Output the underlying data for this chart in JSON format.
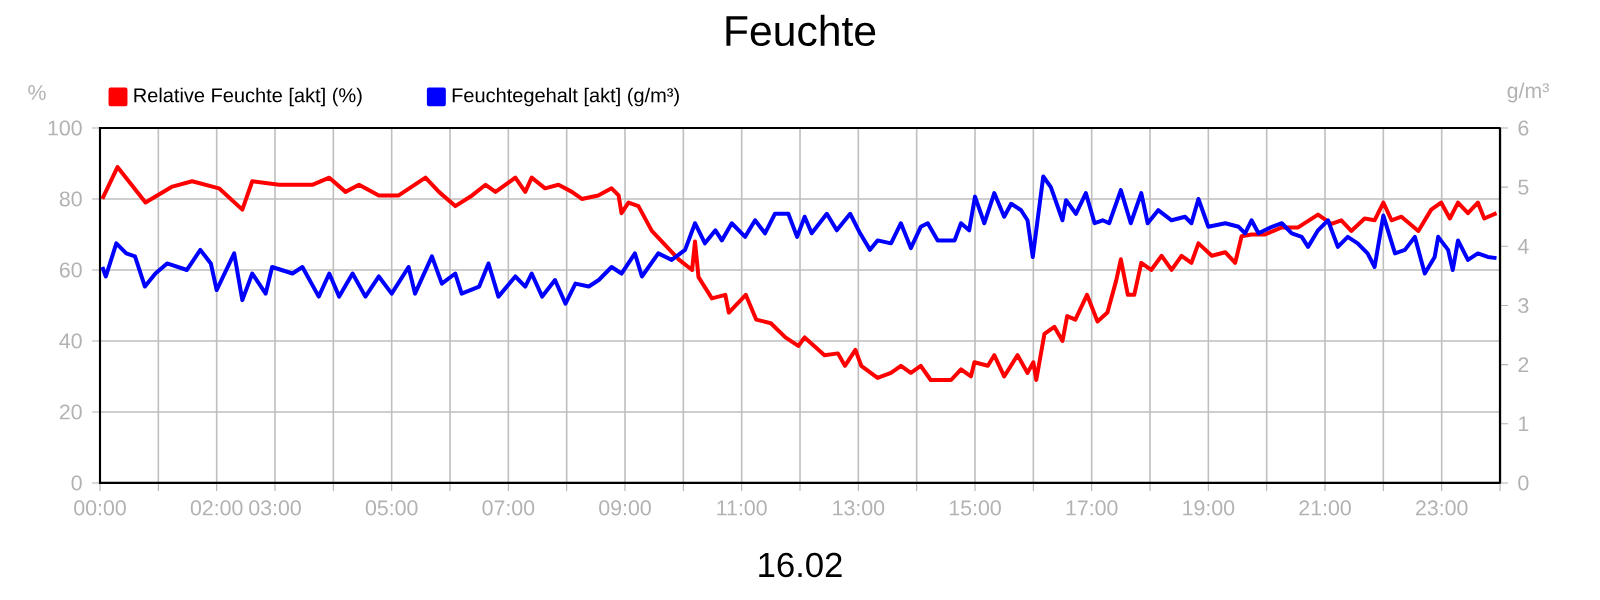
{
  "chart_data": {
    "type": "line",
    "title": "Feuchte",
    "xlabel": "16.02",
    "ylabel": "%",
    "y2label": "g/m³",
    "xlim": [
      0,
      24
    ],
    "ylim": [
      0,
      100
    ],
    "y2lim": [
      0,
      6
    ],
    "xticks": [
      {
        "value": 0,
        "label": "00:00"
      },
      {
        "value": 1,
        "label": null
      },
      {
        "value": 2,
        "label": "02:00"
      },
      {
        "value": 3,
        "label": "03:00"
      },
      {
        "value": 4,
        "label": null
      },
      {
        "value": 5,
        "label": "05:00"
      },
      {
        "value": 6,
        "label": null
      },
      {
        "value": 7,
        "label": "07:00"
      },
      {
        "value": 8,
        "label": null
      },
      {
        "value": 9,
        "label": "09:00"
      },
      {
        "value": 10,
        "label": null
      },
      {
        "value": 11,
        "label": "11:00"
      },
      {
        "value": 12,
        "label": null
      },
      {
        "value": 13,
        "label": "13:00"
      },
      {
        "value": 14,
        "label": null
      },
      {
        "value": 15,
        "label": "15:00"
      },
      {
        "value": 16,
        "label": null
      },
      {
        "value": 17,
        "label": "17:00"
      },
      {
        "value": 18,
        "label": null
      },
      {
        "value": 19,
        "label": "19:00"
      },
      {
        "value": 20,
        "label": null
      },
      {
        "value": 21,
        "label": "21:00"
      },
      {
        "value": 22,
        "label": null
      },
      {
        "value": 23,
        "label": "23:00"
      },
      {
        "value": 24,
        "label": null
      }
    ],
    "yticks": [
      0,
      20,
      40,
      60,
      80,
      100
    ],
    "y2ticks": [
      0,
      1,
      2,
      3,
      4,
      5,
      6
    ],
    "grid": true,
    "legend": "top left",
    "marker": "none",
    "line_style": "solid",
    "series": [
      {
        "name": "Relative Feuchte [akt] (%)",
        "color": "#ff0000",
        "x": [
          0.04,
          0.3,
          0.78,
          1.24,
          1.58,
          2.04,
          2.44,
          2.61,
          3.07,
          3.64,
          3.93,
          4.21,
          4.44,
          4.78,
          5.12,
          5.58,
          5.81,
          6.09,
          6.38,
          6.61,
          6.78,
          7.12,
          7.29,
          7.4,
          7.63,
          7.86,
          8.09,
          8.26,
          8.54,
          8.77,
          8.89,
          8.94,
          9.06,
          9.23,
          9.46,
          9.69,
          9.92,
          10.15,
          10.2,
          10.26,
          10.49,
          10.72,
          10.78,
          11.07,
          11.25,
          11.5,
          11.75,
          11.97,
          12.08,
          12.42,
          12.65,
          12.77,
          12.95,
          13.05,
          13.33,
          13.56,
          13.73,
          13.9,
          14.07,
          14.24,
          14.59,
          14.76,
          14.93,
          14.99,
          15.22,
          15.33,
          15.5,
          15.73,
          15.9,
          16.0,
          16.05,
          16.19,
          16.36,
          16.5,
          16.58,
          16.72,
          16.92,
          17.1,
          17.27,
          17.42,
          17.5,
          17.62,
          17.73,
          17.85,
          18.02,
          18.2,
          18.37,
          18.54,
          18.71,
          18.83,
          19.06,
          19.29,
          19.46,
          19.57,
          19.74,
          19.97,
          20.26,
          20.54,
          20.88,
          21.11,
          21.28,
          21.45,
          21.68,
          21.85,
          22.0,
          22.14,
          22.31,
          22.6,
          22.82,
          22.99,
          23.14,
          23.28,
          23.45,
          23.62,
          23.73,
          23.94
        ],
        "values": [
          80,
          89,
          79,
          83.5,
          85,
          83,
          77,
          85,
          84,
          84,
          86,
          82,
          84,
          81,
          81,
          86,
          82,
          78,
          81,
          84,
          82,
          86,
          82,
          86,
          83,
          84,
          82,
          80,
          81,
          83,
          81,
          76,
          79,
          78,
          71,
          67,
          63,
          60,
          68,
          58,
          52,
          53,
          48,
          53,
          46,
          45,
          41,
          38.6,
          41,
          36,
          36.5,
          33,
          37.5,
          33,
          29.6,
          31,
          33,
          31,
          33,
          29,
          29,
          32,
          30,
          34,
          33,
          36,
          30,
          36,
          31,
          34,
          29,
          42,
          44,
          40,
          47,
          46,
          53,
          45.5,
          48,
          57,
          63,
          53,
          53,
          62,
          60,
          64,
          60,
          64,
          62,
          67.5,
          64,
          65,
          62,
          69.5,
          70,
          70,
          72,
          72,
          75.6,
          73,
          74,
          71,
          74.5,
          74,
          79,
          74,
          75,
          71,
          77,
          79,
          74.5,
          79,
          76,
          79,
          74.5,
          76
        ]
      },
      {
        "name": "Feuchtegehalt [akt] (g/m³)",
        "color": "#0000ff",
        "axis": "y2",
        "x": [
          0.04,
          0.1,
          0.28,
          0.45,
          0.6,
          0.77,
          0.95,
          1.15,
          1.49,
          1.72,
          1.9,
          2.0,
          2.3,
          2.44,
          2.61,
          2.84,
          2.95,
          3.3,
          3.47,
          3.75,
          3.93,
          4.1,
          4.33,
          4.55,
          4.78,
          5.0,
          5.29,
          5.4,
          5.69,
          5.86,
          6.09,
          6.2,
          6.5,
          6.66,
          6.83,
          7.12,
          7.29,
          7.4,
          7.58,
          7.8,
          7.98,
          8.15,
          8.38,
          8.55,
          8.77,
          8.94,
          9.17,
          9.29,
          9.57,
          9.8,
          10.03,
          10.2,
          10.37,
          10.55,
          10.66,
          10.83,
          11.06,
          11.23,
          11.4,
          11.57,
          11.8,
          11.95,
          12.08,
          12.2,
          12.46,
          12.63,
          12.86,
          13.03,
          13.2,
          13.33,
          13.56,
          13.73,
          13.9,
          14.07,
          14.19,
          14.36,
          14.65,
          14.76,
          14.9,
          15.0,
          15.16,
          15.33,
          15.5,
          15.62,
          15.79,
          15.9,
          15.99,
          16.17,
          16.3,
          16.5,
          16.56,
          16.73,
          16.9,
          17.05,
          17.19,
          17.3,
          17.5,
          17.67,
          17.85,
          17.96,
          18.14,
          18.37,
          18.6,
          18.71,
          18.83,
          19.0,
          19.29,
          19.52,
          19.63,
          19.74,
          19.86,
          20.09,
          20.26,
          20.43,
          20.6,
          20.71,
          20.88,
          21.05,
          21.22,
          21.39,
          21.56,
          21.73,
          21.85,
          22.0,
          22.2,
          22.37,
          22.54,
          22.71,
          22.88,
          22.94,
          23.11,
          23.19,
          23.28,
          23.45,
          23.62,
          23.79,
          23.94
        ],
        "values": [
          3.65,
          3.49,
          4.05,
          3.88,
          3.83,
          3.32,
          3.54,
          3.71,
          3.6,
          3.94,
          3.71,
          3.26,
          3.88,
          3.09,
          3.54,
          3.2,
          3.65,
          3.54,
          3.65,
          3.15,
          3.54,
          3.15,
          3.54,
          3.15,
          3.49,
          3.2,
          3.65,
          3.2,
          3.83,
          3.37,
          3.54,
          3.2,
          3.32,
          3.71,
          3.15,
          3.49,
          3.32,
          3.54,
          3.15,
          3.43,
          3.03,
          3.37,
          3.32,
          3.43,
          3.65,
          3.54,
          3.88,
          3.49,
          3.88,
          3.77,
          3.94,
          4.39,
          4.05,
          4.27,
          4.1,
          4.39,
          4.16,
          4.44,
          4.22,
          4.55,
          4.55,
          4.16,
          4.5,
          4.22,
          4.55,
          4.27,
          4.55,
          4.22,
          3.94,
          4.1,
          4.05,
          4.39,
          3.97,
          4.33,
          4.39,
          4.1,
          4.1,
          4.39,
          4.27,
          4.84,
          4.39,
          4.9,
          4.5,
          4.72,
          4.61,
          4.44,
          3.82,
          5.18,
          5.0,
          4.44,
          4.78,
          4.55,
          4.9,
          4.39,
          4.44,
          4.39,
          4.95,
          4.39,
          4.9,
          4.39,
          4.61,
          4.44,
          4.5,
          4.39,
          4.8,
          4.33,
          4.39,
          4.33,
          4.22,
          4.44,
          4.22,
          4.33,
          4.39,
          4.22,
          4.16,
          3.99,
          4.27,
          4.44,
          3.99,
          4.16,
          4.05,
          3.88,
          3.65,
          4.52,
          3.88,
          3.94,
          4.16,
          3.54,
          3.82,
          4.16,
          3.94,
          3.6,
          4.1,
          3.77,
          3.88,
          3.82,
          3.8
        ]
      }
    ]
  }
}
